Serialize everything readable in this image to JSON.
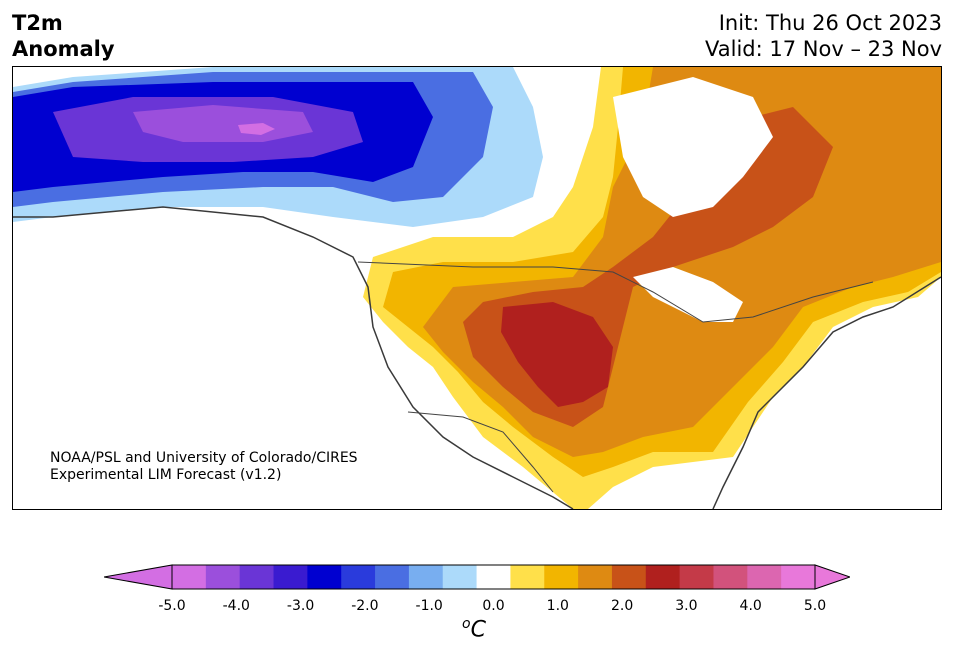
{
  "title": {
    "left_line1": "T2m",
    "left_line2": "Anomaly",
    "init": "Init: Thu 26 Oct 2023",
    "valid": "Valid: 17 Nov – 23 Nov"
  },
  "credit": {
    "line1": "NOAA/PSL and University of Colorado/CIRES",
    "line2": "Experimental LIM Forecast (v1.2)"
  },
  "colorbar": {
    "bins": [
      -5.0,
      -4.5,
      -4.0,
      -3.5,
      -3.0,
      -2.5,
      -2.0,
      -1.5,
      -1.0,
      -0.5,
      0.5,
      1.0,
      1.5,
      2.0,
      2.5,
      3.0,
      3.5,
      4.0,
      4.5,
      5.0
    ],
    "colors": [
      "#d36ee3",
      "#9b4fdc",
      "#6a35d6",
      "#3a1bd0",
      "#0000d0",
      "#2a3bdc",
      "#4a6ee2",
      "#78aef0",
      "#acdafa",
      "#ffffff",
      "#ffe04a",
      "#f2b500",
      "#de8a12",
      "#c85218",
      "#b0201e",
      "#c43a48",
      "#d2527c",
      "#dc66b0",
      "#e878da"
    ],
    "under_color": "#d36ee3",
    "over_color": "#e878da",
    "tick_labels": [
      "-5.0",
      "-4.0",
      "-3.0",
      "-2.0",
      "-1.0",
      "0.0",
      "1.0",
      "2.0",
      "3.0",
      "4.0",
      "5.0"
    ],
    "unit_base": "C",
    "unit_sup": "o"
  },
  "map_colors": {
    "ocean": "#ffffff",
    "coast": "#3a3a3a",
    "border": "#444444"
  }
}
